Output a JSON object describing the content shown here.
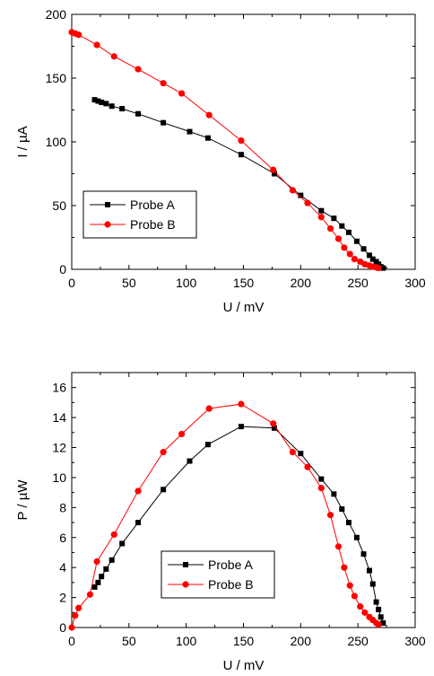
{
  "chart_data": [
    {
      "type": "line",
      "xlabel": "U / mV",
      "ylabel": "I / µA",
      "xlim": [
        0,
        300
      ],
      "ylim": [
        0,
        200
      ],
      "xticks": [
        0,
        50,
        100,
        150,
        200,
        250,
        300
      ],
      "yticks": [
        0,
        50,
        100,
        150,
        200
      ],
      "grid": false,
      "legend_position": "bottom-left",
      "series": [
        {
          "name": "Probe A",
          "color": "#000000",
          "marker": "square",
          "x": [
            20,
            23,
            26,
            30,
            35,
            44,
            58,
            80,
            103,
            119,
            148,
            177,
            200,
            218,
            229,
            236,
            242,
            249,
            255,
            260,
            263,
            266,
            268,
            270,
            272
          ],
          "y": [
            133,
            132,
            131,
            130,
            128,
            126,
            122,
            115,
            108,
            103,
            90,
            75,
            58,
            46,
            40,
            34,
            29,
            22,
            16,
            11,
            8,
            6,
            4,
            2,
            1
          ]
        },
        {
          "name": "Probe B",
          "color": "#ff0000",
          "marker": "circle",
          "x": [
            0,
            3,
            6,
            22,
            37,
            58,
            80,
            96,
            120,
            148,
            176,
            193,
            206,
            218,
            226,
            233,
            238,
            243,
            247,
            252,
            256,
            260,
            263,
            266,
            268
          ],
          "y": [
            186,
            185,
            184,
            176,
            167,
            157,
            146,
            138,
            121,
            101,
            78,
            62,
            52,
            41,
            32,
            24,
            17,
            12,
            8,
            6,
            4,
            3,
            2,
            1.5,
            1
          ]
        }
      ]
    },
    {
      "type": "line",
      "xlabel": "U / mV",
      "ylabel": "P / µW",
      "xlim": [
        0,
        300
      ],
      "ylim": [
        0,
        17
      ],
      "xticks": [
        0,
        50,
        100,
        150,
        200,
        250,
        300
      ],
      "yticks": [
        0,
        2,
        4,
        6,
        8,
        10,
        12,
        14,
        16
      ],
      "grid": false,
      "legend_position": "bottom-center",
      "series": [
        {
          "name": "Probe A",
          "color": "#000000",
          "marker": "square",
          "x": [
            20,
            23,
            26,
            30,
            35,
            44,
            58,
            80,
            103,
            119,
            148,
            177,
            200,
            218,
            229,
            236,
            242,
            249,
            255,
            260,
            263,
            266,
            268,
            270,
            272
          ],
          "y": [
            2.7,
            3.0,
            3.4,
            3.9,
            4.5,
            5.6,
            7.0,
            9.2,
            11.1,
            12.2,
            13.4,
            13.3,
            11.6,
            9.9,
            8.9,
            7.9,
            7.0,
            6.0,
            4.9,
            3.8,
            2.9,
            1.7,
            1.2,
            0.7,
            0.3
          ]
        },
        {
          "name": "Probe B",
          "color": "#ff0000",
          "marker": "circle",
          "x": [
            0,
            3,
            6,
            16,
            22,
            37,
            58,
            80,
            96,
            120,
            148,
            176,
            193,
            206,
            218,
            226,
            233,
            238,
            243,
            247,
            252,
            256,
            260,
            263,
            266,
            268
          ],
          "y": [
            0,
            0.8,
            1.3,
            2.2,
            4.4,
            6.2,
            9.1,
            11.7,
            12.9,
            14.6,
            14.9,
            13.6,
            11.7,
            10.7,
            9.3,
            7.5,
            5.4,
            4.0,
            2.8,
            2.1,
            1.4,
            1.0,
            0.7,
            0.5,
            0.3,
            0.2
          ]
        }
      ]
    }
  ]
}
